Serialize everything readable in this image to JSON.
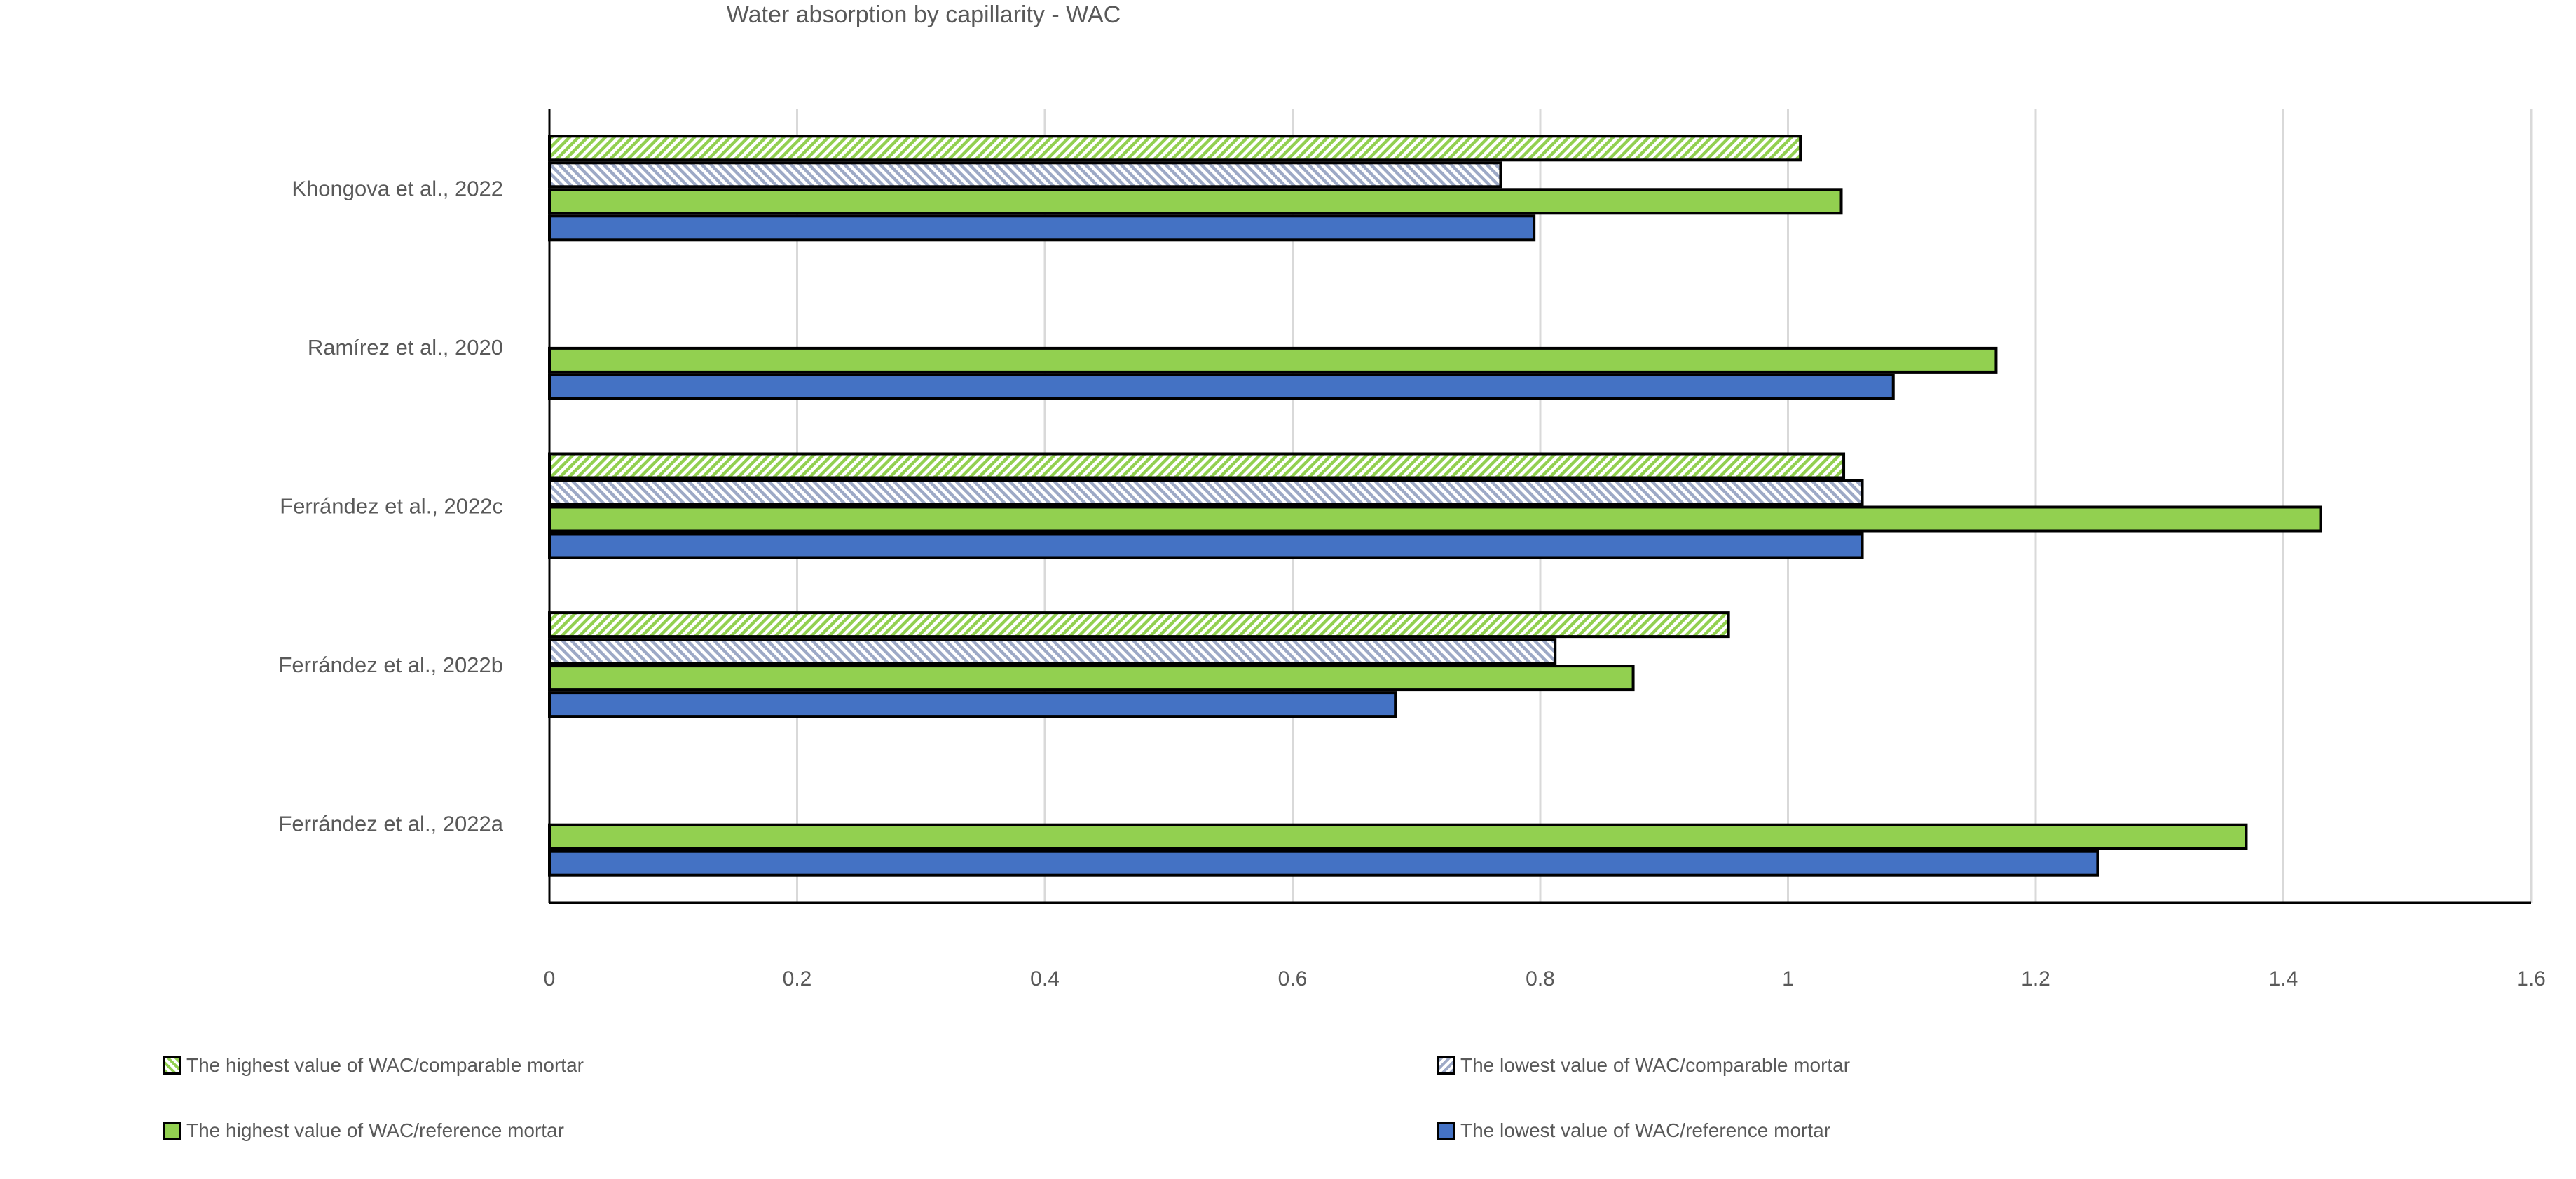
{
  "chart_data": {
    "type": "bar",
    "orientation": "horizontal",
    "title": "Water absorption by capillarity - WAC",
    "xlabel": "",
    "ylabel": "",
    "xlim": [
      0,
      1.6
    ],
    "x_ticks": [
      0,
      0.2,
      0.4,
      0.6,
      0.8,
      1,
      1.2,
      1.4,
      1.6
    ],
    "x_tick_labels": [
      "0",
      "0.2",
      "0.4",
      "0.6",
      "0.8",
      "1",
      "1.2",
      "1.4",
      "1.6"
    ],
    "grid": true,
    "legend_position": "bottom",
    "categories": [
      "Ferrández et al., 2022a",
      "Ferrández et al., 2022b",
      "Ferrández et al., 2022c",
      "Ramírez et al., 2020",
      "Khongova et al., 2022"
    ],
    "series": [
      {
        "name": "The lowest value of WAC/reference mortar",
        "pattern": "solid-blue",
        "color": "#4472C4",
        "values": [
          1.25,
          0.683,
          1.06,
          1.085,
          0.795
        ]
      },
      {
        "name": "The highest value of WAC/reference mortar",
        "pattern": "solid-green",
        "color": "#92D050",
        "values": [
          1.37,
          0.875,
          1.43,
          1.168,
          1.043
        ]
      },
      {
        "name": "The lowest value of WAC/comparable mortar",
        "pattern": "hatch-blue-grey",
        "color": "#9DA9C6",
        "values": [
          null,
          0.812,
          1.06,
          null,
          0.768
        ]
      },
      {
        "name": "The highest value of WAC/comparable mortar",
        "pattern": "hatch-green",
        "color": "#92D050",
        "values": [
          null,
          0.952,
          1.045,
          null,
          1.01
        ]
      }
    ],
    "legend_order": [
      3,
      2,
      1,
      0
    ]
  }
}
